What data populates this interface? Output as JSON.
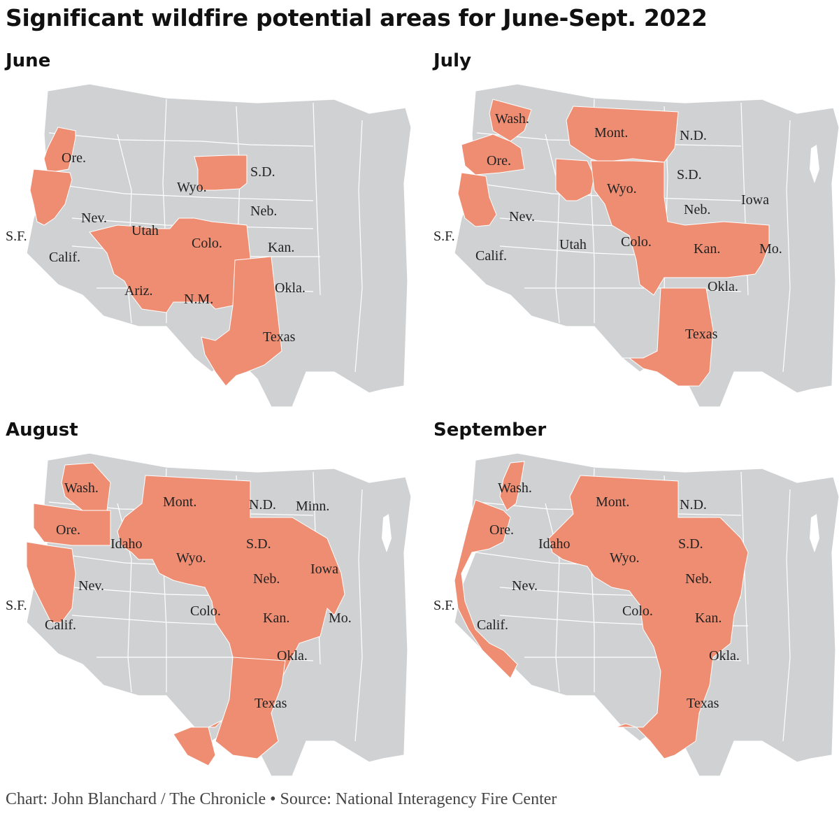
{
  "title": "Significant wildfire potential areas for June-Sept. 2022",
  "fill_color": "#ee8d72",
  "land_color": "#cfd1d3",
  "panels": [
    {
      "month": "June",
      "labels": [
        "Ore.",
        "S.F.",
        "Calif.",
        "Nev.",
        "Utah",
        "Ariz.",
        "N.M.",
        "Colo.",
        "Wyo.",
        "S.D.",
        "Neb.",
        "Kan.",
        "Okla.",
        "Texas"
      ]
    },
    {
      "month": "July",
      "labels": [
        "Wash.",
        "Ore.",
        "S.F.",
        "Calif.",
        "Nev.",
        "Utah",
        "Mont.",
        "N.D.",
        "S.D.",
        "Wyo.",
        "Neb.",
        "Iowa",
        "Colo.",
        "Kan.",
        "Mo.",
        "Okla.",
        "Texas"
      ]
    },
    {
      "month": "August",
      "labels": [
        "Wash.",
        "Ore.",
        "Idaho",
        "S.F.",
        "Calif.",
        "Nev.",
        "Mont.",
        "Wyo.",
        "N.D.",
        "Minn.",
        "S.D.",
        "Iowa",
        "Neb.",
        "Colo.",
        "Kan.",
        "Mo.",
        "Okla.",
        "Texas"
      ]
    },
    {
      "month": "September",
      "labels": [
        "Wash.",
        "Ore.",
        "Idaho",
        "S.F.",
        "Calif.",
        "Nev.",
        "Mont.",
        "Wyo.",
        "N.D.",
        "S.D.",
        "Neb.",
        "Colo.",
        "Kan.",
        "Okla.",
        "Texas"
      ]
    }
  ],
  "footer": {
    "credit": "Chart: John Blanchard / The Chronicle",
    "separator": "•",
    "source": "Source: National Interagency Fire Center"
  }
}
